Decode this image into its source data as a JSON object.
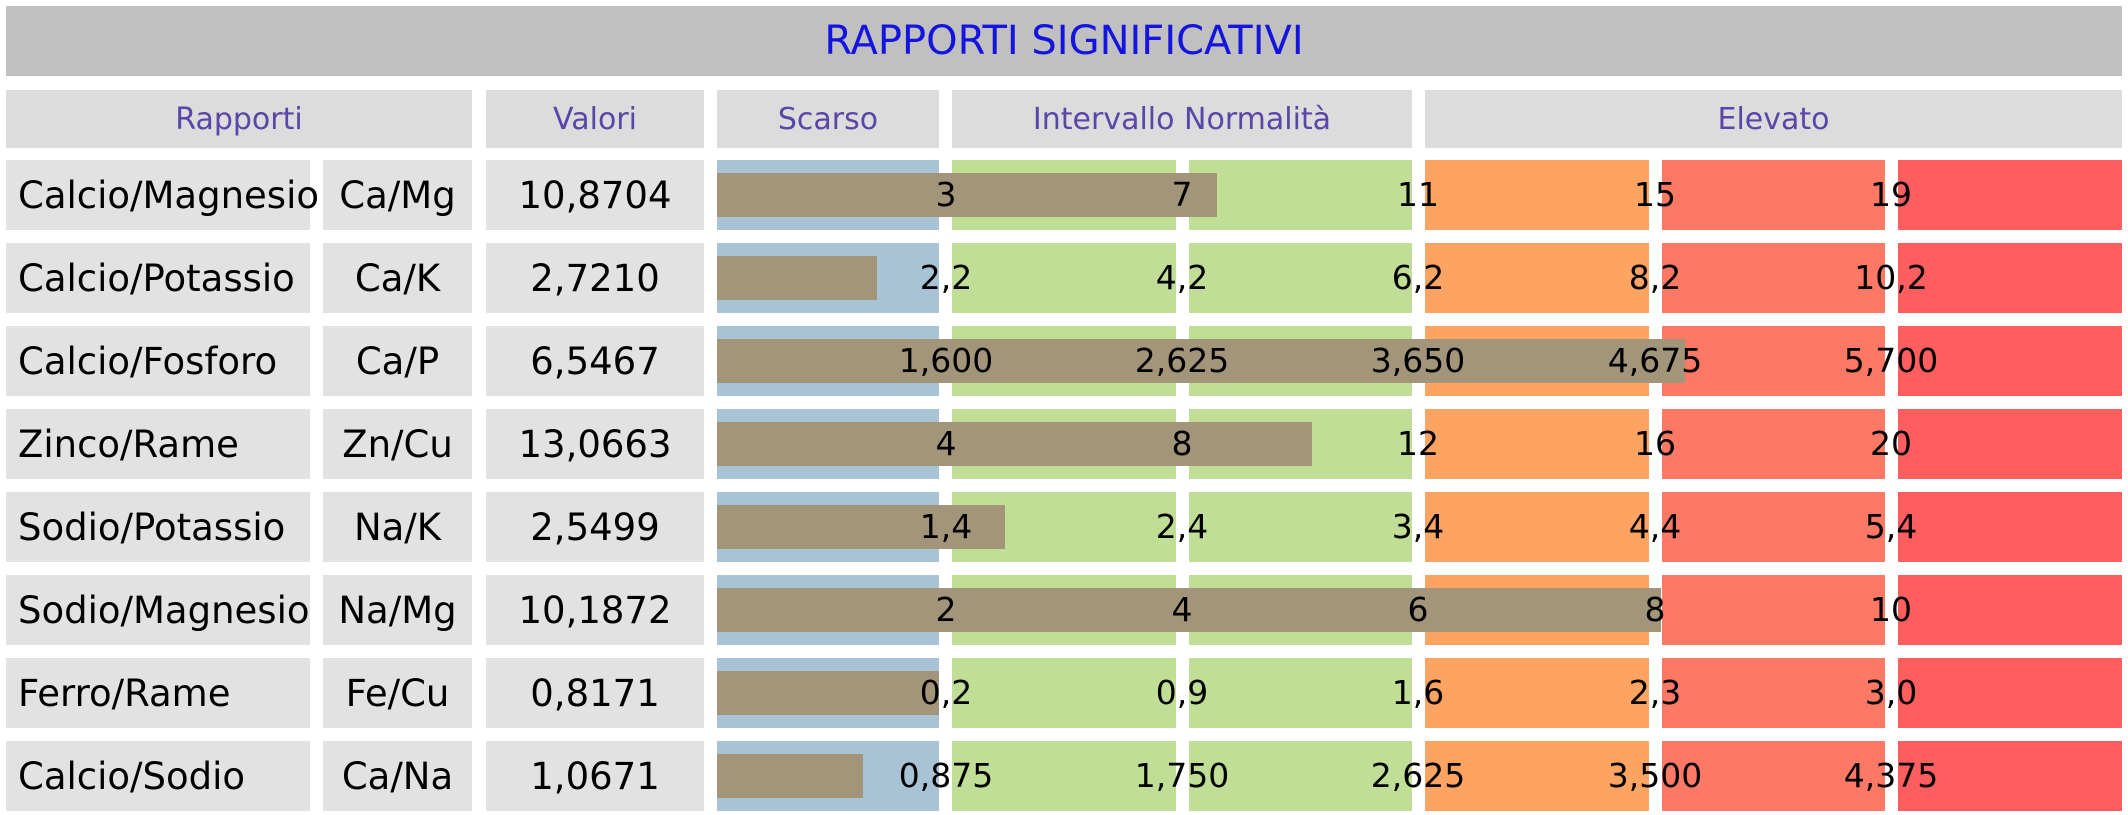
{
  "title": "RAPPORTI SIGNIFICATIVI",
  "headers": {
    "rapporti": "Rapporti",
    "valori": "Valori",
    "scarso": "Scarso",
    "normalita": "Intervallo Normalità",
    "elevato": "Elevato"
  },
  "colors": {
    "scarso": "#a9c3d6",
    "normal": "#c0de96",
    "high1": "#fda462",
    "high2": "#fe7965",
    "high3": "#ff5e5e",
    "bar": "#a39579",
    "title_text": "#1414e0",
    "header_text": "#5a45a8"
  },
  "rows": [
    {
      "name": "Calcio/Magnesio",
      "symbol": "Ca/Mg",
      "value": "10,8704",
      "ticks": [
        "3",
        "7",
        "11",
        "15",
        "19"
      ],
      "level": 1.06
    },
    {
      "name": "Calcio/Potassio",
      "symbol": "Ca/K",
      "value": "2,7210",
      "ticks": [
        "2,2",
        "4,2",
        "6,2",
        "8,2",
        "10,2"
      ],
      "level": 0.34
    },
    {
      "name": "Calcio/Fosforo",
      "symbol": "Ca/P",
      "value": "6,5467",
      "ticks": [
        "1,600",
        "2,625",
        "3,650",
        "4,675",
        "5,700"
      ],
      "level": 2.05
    },
    {
      "name": "Zinco/Rame",
      "symbol": "Zn/Cu",
      "value": "13,0663",
      "ticks": [
        "4",
        "8",
        "12",
        "16",
        "20"
      ],
      "level": 1.26
    },
    {
      "name": "Sodio/Potassio",
      "symbol": "Na/K",
      "value": "2,5499",
      "ticks": [
        "1,4",
        "2,4",
        "3,4",
        "4,4",
        "5,4"
      ],
      "level": 0.61
    },
    {
      "name": "Sodio/Magnesio",
      "symbol": "Na/Mg",
      "value": "10,1872",
      "ticks": [
        "2",
        "4",
        "6",
        "8",
        "10"
      ],
      "level": 2.0
    },
    {
      "name": "Ferro/Rame",
      "symbol": "Fe/Cu",
      "value": "0,8171",
      "ticks": [
        "0,2",
        "0,9",
        "1,6",
        "2,3",
        "3,0"
      ],
      "level": 0.47
    },
    {
      "name": "Calcio/Sodio",
      "symbol": "Ca/Na",
      "value": "1,0671",
      "ticks": [
        "0,875",
        "1,750",
        "2,625",
        "3,500",
        "4,375"
      ],
      "level": 0.31
    }
  ]
}
